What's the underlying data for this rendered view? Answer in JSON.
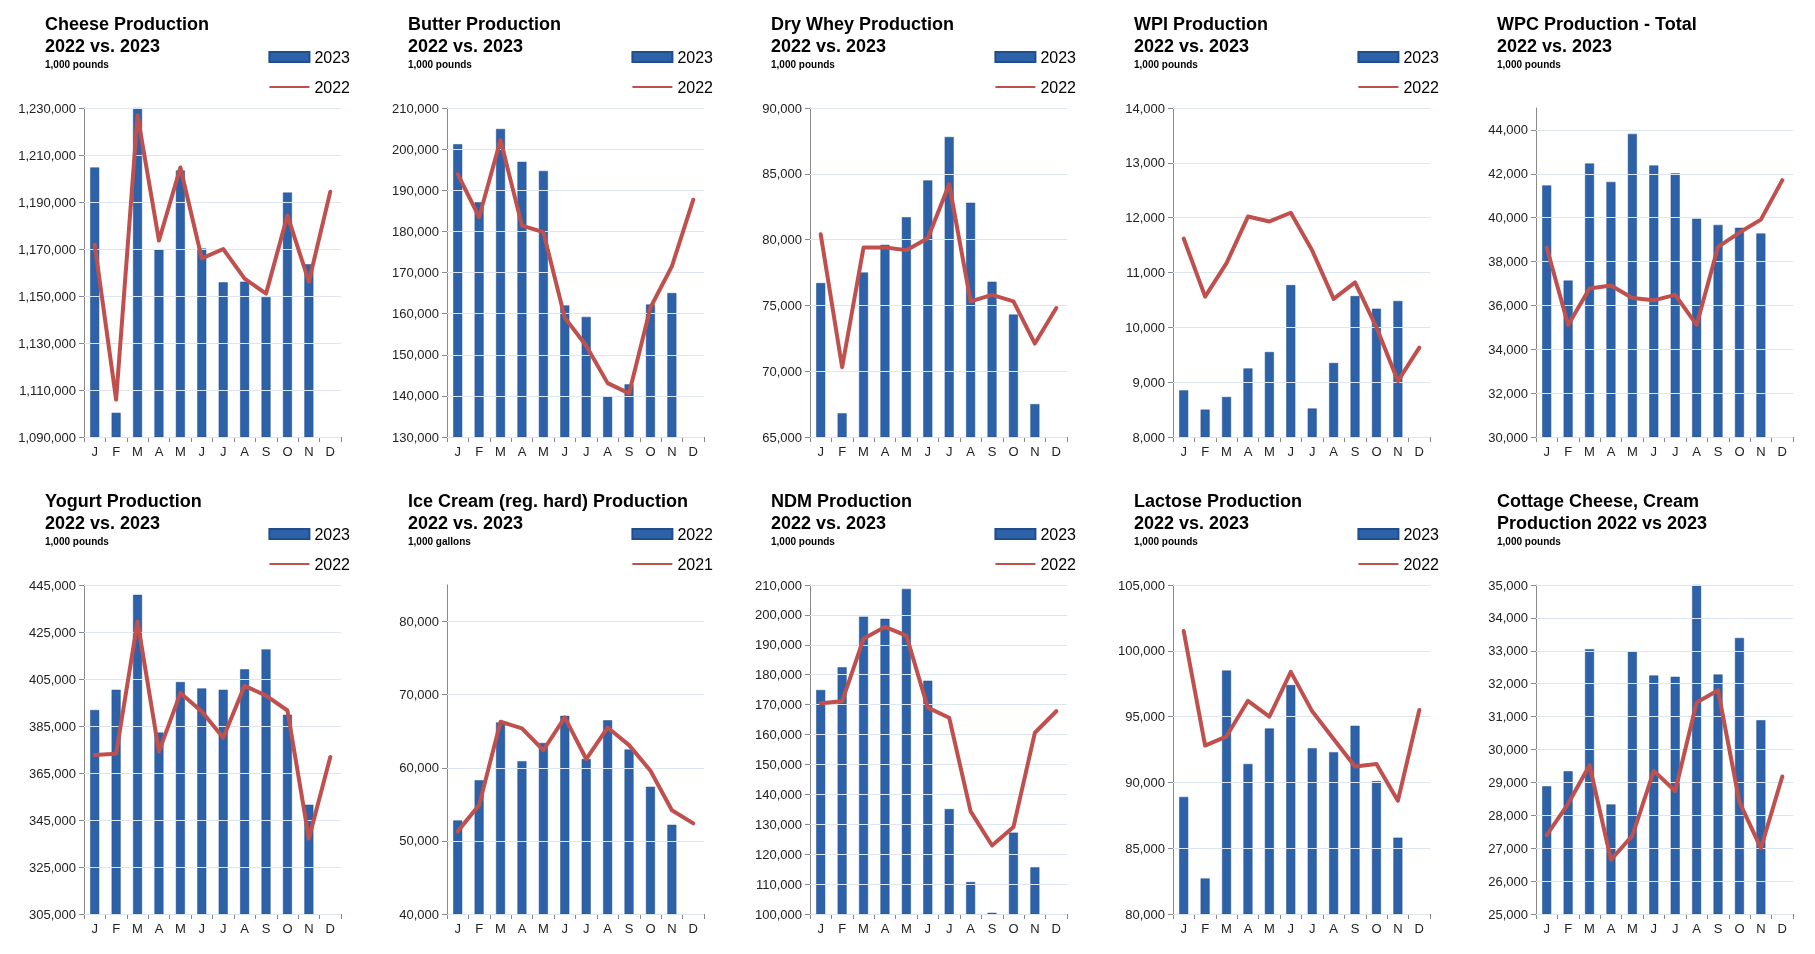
{
  "chart_data": [
    {
      "type": "bar",
      "title": "Cheese Production\n2022 vs. 2023",
      "subtitle": "1,000 pounds",
      "categories": [
        "J",
        "F",
        "M",
        "A",
        "M",
        "J",
        "J",
        "A",
        "S",
        "O",
        "N",
        "D"
      ],
      "series": [
        {
          "name": "2023",
          "color": "#2e62a8",
          "values": [
            1204700,
            1100300,
            1230000,
            1169700,
            1203400,
            1170200,
            1155800,
            1156100,
            1149600,
            1194000,
            1163500,
            null
          ]
        },
        {
          "name": "2022",
          "type": "line",
          "color": "#c0504d",
          "values": [
            1171800,
            1105900,
            1226900,
            1173600,
            1204700,
            1166000,
            1170000,
            1157400,
            1151000,
            1184300,
            1156100,
            1194400
          ]
        }
      ],
      "ylim": [
        1090000,
        1230000
      ],
      "yticks": [
        {
          "value": 1090000,
          "label": "1,090,000"
        },
        {
          "value": 1110000,
          "label": "1,110,000"
        },
        {
          "value": 1130000,
          "label": "1,130,000"
        },
        {
          "value": 1150000,
          "label": "1,150,000"
        },
        {
          "value": 1170000,
          "label": "1,170,000"
        },
        {
          "value": 1190000,
          "label": "1,190,000"
        },
        {
          "value": 1210000,
          "label": "1,210,000"
        },
        {
          "value": 1230000,
          "label": "1,230,000"
        }
      ],
      "grid": "y",
      "legend": "top right",
      "marker": "none"
    },
    {
      "type": "bar",
      "title": "Butter Production\n2022 vs. 2023",
      "subtitle": "1,000 pounds",
      "categories": [
        "J",
        "F",
        "M",
        "A",
        "M",
        "J",
        "J",
        "A",
        "S",
        "O",
        "N",
        "D"
      ],
      "series": [
        {
          "name": "2023",
          "color": "#2e62a8",
          "values": [
            201200,
            187100,
            204900,
            196900,
            194700,
            162000,
            159200,
            139800,
            142800,
            162200,
            165000,
            null
          ]
        },
        {
          "name": "2022",
          "type": "line",
          "color": "#c0504d",
          "values": [
            193900,
            183500,
            202200,
            181400,
            179800,
            159000,
            152200,
            143100,
            140600,
            161500,
            171500,
            187700
          ]
        }
      ],
      "ylim": [
        130000,
        210000
      ],
      "yticks": [
        {
          "value": 130000,
          "label": "130,000"
        },
        {
          "value": 140000,
          "label": "140,000"
        },
        {
          "value": 150000,
          "label": "150,000"
        },
        {
          "value": 160000,
          "label": "160,000"
        },
        {
          "value": 170000,
          "label": "170,000"
        },
        {
          "value": 180000,
          "label": "180,000"
        },
        {
          "value": 190000,
          "label": "190,000"
        },
        {
          "value": 200000,
          "label": "200,000"
        },
        {
          "value": 210000,
          "label": "210,000"
        }
      ],
      "grid": "y",
      "legend": "top right",
      "marker": "none"
    },
    {
      "type": "bar",
      "title": "Dry Whey Production\n2022 vs. 2023",
      "subtitle": "1,000 pounds",
      "categories": [
        "J",
        "F",
        "M",
        "A",
        "M",
        "J",
        "J",
        "A",
        "S",
        "O",
        "N",
        "D"
      ],
      "series": [
        {
          "name": "2023",
          "color": "#2e62a8",
          "values": [
            76700,
            66800,
            77500,
            79600,
            81700,
            84500,
            87800,
            82800,
            76800,
            74300,
            67500,
            null
          ]
        },
        {
          "name": "2022",
          "type": "line",
          "color": "#c0504d",
          "values": [
            80400,
            70300,
            79400,
            79400,
            79200,
            80100,
            84200,
            75300,
            75800,
            75300,
            72100,
            74800
          ]
        }
      ],
      "ylim": [
        65000,
        90000
      ],
      "yticks": [
        {
          "value": 65000,
          "label": "65,000"
        },
        {
          "value": 70000,
          "label": "70,000"
        },
        {
          "value": 75000,
          "label": "75,000"
        },
        {
          "value": 80000,
          "label": "80,000"
        },
        {
          "value": 85000,
          "label": "85,000"
        },
        {
          "value": 90000,
          "label": "90,000"
        }
      ],
      "grid": "y",
      "legend": "top right",
      "marker": "none"
    },
    {
      "type": "bar",
      "title": "WPI Production\n2022 vs. 2023",
      "subtitle": "1,000 pounds",
      "categories": [
        "J",
        "F",
        "M",
        "A",
        "M",
        "J",
        "J",
        "A",
        "S",
        "O",
        "N",
        "D"
      ],
      "series": [
        {
          "name": "2023",
          "color": "#2e62a8",
          "values": [
            8850,
            8500,
            8730,
            9250,
            9550,
            10770,
            8520,
            9350,
            10570,
            10340,
            10480,
            null
          ]
        },
        {
          "name": "2022",
          "type": "line",
          "color": "#c0504d",
          "values": [
            11620,
            10560,
            11170,
            12020,
            11930,
            12090,
            11400,
            10520,
            10820,
            10000,
            9020,
            9630
          ]
        }
      ],
      "ylim": [
        8000,
        14000
      ],
      "yticks": [
        {
          "value": 8000,
          "label": "8,000"
        },
        {
          "value": 9000,
          "label": "9,000"
        },
        {
          "value": 10000,
          "label": "10,000"
        },
        {
          "value": 11000,
          "label": "11,000"
        },
        {
          "value": 12000,
          "label": "12,000"
        },
        {
          "value": 13000,
          "label": "13,000"
        },
        {
          "value": 14000,
          "label": "14,000"
        }
      ],
      "grid": "y",
      "legend": "top right",
      "marker": "none"
    },
    {
      "type": "bar",
      "title": "WPC Production - Total\n2022 vs. 2023",
      "subtitle": "1,000 pounds",
      "categories": [
        "J",
        "F",
        "M",
        "A",
        "M",
        "J",
        "J",
        "A",
        "S",
        "O",
        "N",
        "D"
      ],
      "series": [
        {
          "color": "#2e62a8",
          "values": [
            41470,
            37130,
            42470,
            41630,
            43820,
            42380,
            42020,
            39950,
            39670,
            39540,
            39280,
            null
          ]
        },
        {
          "type": "line",
          "color": "#c0504d",
          "values": [
            38640,
            35110,
            36770,
            36910,
            36340,
            36230,
            36480,
            35110,
            38670,
            39320,
            39910,
            41710
          ]
        }
      ],
      "ylim": [
        30000,
        45000
      ],
      "yticks": [
        {
          "value": 30000,
          "label": "30,000"
        },
        {
          "value": 32000,
          "label": "32,000"
        },
        {
          "value": 34000,
          "label": "34,000"
        },
        {
          "value": 36000,
          "label": "36,000"
        },
        {
          "value": 38000,
          "label": "38,000"
        },
        {
          "value": 40000,
          "label": "40,000"
        },
        {
          "value": 42000,
          "label": "42,000"
        },
        {
          "value": 44000,
          "label": "44,000"
        }
      ],
      "grid": "y",
      "marker": "none"
    },
    {
      "type": "bar",
      "title": "Yogurt Production\n2022 vs. 2023",
      "subtitle": "1,000 pounds",
      "categories": [
        "J",
        "F",
        "M",
        "A",
        "M",
        "J",
        "J",
        "A",
        "S",
        "O",
        "N",
        "D"
      ],
      "series": [
        {
          "name": "2023",
          "color": "#2e62a8",
          "values": [
            391800,
            400400,
            440800,
            382200,
            403700,
            401000,
            400400,
            409100,
            417600,
            389800,
            351500,
            null
          ]
        },
        {
          "name": "2022",
          "type": "line",
          "color": "#c0504d",
          "values": [
            372700,
            373200,
            429500,
            374100,
            399000,
            391200,
            380000,
            402100,
            397900,
            391600,
            337100,
            371800
          ]
        }
      ],
      "ylim": [
        305000,
        445000
      ],
      "yticks": [
        {
          "value": 305000,
          "label": "305,000"
        },
        {
          "value": 325000,
          "label": "325,000"
        },
        {
          "value": 345000,
          "label": "345,000"
        },
        {
          "value": 365000,
          "label": "365,000"
        },
        {
          "value": 385000,
          "label": "385,000"
        },
        {
          "value": 405000,
          "label": "405,000"
        },
        {
          "value": 425000,
          "label": "425,000"
        },
        {
          "value": 445000,
          "label": "445,000"
        }
      ],
      "grid": "y",
      "legend": "top right",
      "marker": "none"
    },
    {
      "type": "bar",
      "title": "Ice Cream (reg. hard) Production\n2022 vs. 2023",
      "subtitle": "1,000 gallons",
      "categories": [
        "J",
        "F",
        "M",
        "A",
        "M",
        "J",
        "J",
        "A",
        "S",
        "O",
        "N",
        "D"
      ],
      "series": [
        {
          "name": "2022",
          "color": "#2e62a8",
          "values": [
            52800,
            58300,
            66200,
            60900,
            63400,
            67100,
            61200,
            66500,
            62500,
            57400,
            52200,
            null
          ]
        },
        {
          "name": "2021",
          "type": "line",
          "color": "#c0504d",
          "values": [
            51300,
            54900,
            66300,
            65400,
            62400,
            66900,
            61200,
            65500,
            63100,
            59600,
            54200,
            52400
          ]
        }
      ],
      "ylim": [
        40000,
        85000
      ],
      "yticks": [
        {
          "value": 40000,
          "label": "40,000"
        },
        {
          "value": 50000,
          "label": "50,000"
        },
        {
          "value": 60000,
          "label": "60,000"
        },
        {
          "value": 70000,
          "label": "70,000"
        },
        {
          "value": 80000,
          "label": "80,000"
        }
      ],
      "grid": "y",
      "legend": "top right",
      "marker": "none"
    },
    {
      "type": "bar",
      "title": "NDM Production\n2022 vs. 2023",
      "subtitle": "1,000 pounds",
      "categories": [
        "J",
        "F",
        "M",
        "A",
        "M",
        "J",
        "J",
        "A",
        "S",
        "O",
        "N",
        "D"
      ],
      "series": [
        {
          "name": "2023",
          "color": "#2e62a8",
          "values": [
            174900,
            182500,
            199400,
            198700,
            208700,
            178000,
            135100,
            110700,
            100400,
            127200,
            115600,
            null
          ]
        },
        {
          "name": "2022",
          "type": "line",
          "color": "#c0504d",
          "values": [
            170500,
            171100,
            192000,
            196000,
            193100,
            169000,
            165600,
            134300,
            122900,
            129100,
            160600,
            167800
          ]
        }
      ],
      "ylim": [
        100000,
        210000
      ],
      "yticks": [
        {
          "value": 100000,
          "label": "100,000"
        },
        {
          "value": 110000,
          "label": "110,000"
        },
        {
          "value": 120000,
          "label": "120,000"
        },
        {
          "value": 130000,
          "label": "130,000"
        },
        {
          "value": 140000,
          "label": "140,000"
        },
        {
          "value": 150000,
          "label": "150,000"
        },
        {
          "value": 160000,
          "label": "160,000"
        },
        {
          "value": 170000,
          "label": "170,000"
        },
        {
          "value": 180000,
          "label": "180,000"
        },
        {
          "value": 190000,
          "label": "190,000"
        },
        {
          "value": 200000,
          "label": "200,000"
        },
        {
          "value": 210000,
          "label": "210,000"
        }
      ],
      "grid": "y",
      "legend": "top right",
      "marker": "none"
    },
    {
      "type": "bar",
      "title": "Lactose Production\n2022 vs. 2023",
      "subtitle": "1,000 pounds",
      "categories": [
        "J",
        "F",
        "M",
        "A",
        "M",
        "J",
        "J",
        "A",
        "S",
        "O",
        "N",
        "D"
      ],
      "series": [
        {
          "name": "2023",
          "color": "#2e62a8",
          "values": [
            88900,
            82700,
            98500,
            91400,
            94100,
            97400,
            92600,
            92300,
            94300,
            90100,
            85800,
            null
          ]
        },
        {
          "name": "2022",
          "type": "line",
          "color": "#c0504d",
          "values": [
            101500,
            92800,
            93500,
            96200,
            95000,
            98400,
            95400,
            93300,
            91200,
            91400,
            88600,
            95500
          ]
        }
      ],
      "ylim": [
        80000,
        105000
      ],
      "yticks": [
        {
          "value": 80000,
          "label": "80,000"
        },
        {
          "value": 85000,
          "label": "85,000"
        },
        {
          "value": 90000,
          "label": "90,000"
        },
        {
          "value": 95000,
          "label": "95,000"
        },
        {
          "value": 100000,
          "label": "100,000"
        },
        {
          "value": 105000,
          "label": "105,000"
        }
      ],
      "grid": "y",
      "legend": "top right",
      "marker": "none"
    },
    {
      "type": "bar",
      "title": "Cottage Cheese, Cream\nProduction 2022 vs 2023",
      "subtitle": "1,000 pounds",
      "categories": [
        "J",
        "F",
        "M",
        "A",
        "M",
        "J",
        "J",
        "A",
        "S",
        "O",
        "N",
        "D"
      ],
      "series": [
        {
          "color": "#2e62a8",
          "values": [
            28880,
            29340,
            33050,
            28330,
            32980,
            32250,
            32210,
            35000,
            32280,
            33390,
            30890,
            null
          ]
        },
        {
          "type": "line",
          "color": "#c0504d",
          "values": [
            27400,
            28350,
            29520,
            26650,
            27380,
            29350,
            28740,
            31430,
            31800,
            28400,
            27000,
            29180
          ]
        }
      ],
      "ylim": [
        25000,
        35000
      ],
      "yticks": [
        {
          "value": 25000,
          "label": "25,000"
        },
        {
          "value": 26000,
          "label": "26,000"
        },
        {
          "value": 27000,
          "label": "27,000"
        },
        {
          "value": 28000,
          "label": "28,000"
        },
        {
          "value": 29000,
          "label": "29,000"
        },
        {
          "value": 30000,
          "label": "30,000"
        },
        {
          "value": 31000,
          "label": "31,000"
        },
        {
          "value": 32000,
          "label": "32,000"
        },
        {
          "value": 33000,
          "label": "33,000"
        },
        {
          "value": 34000,
          "label": "34,000"
        },
        {
          "value": 35000,
          "label": "35,000"
        }
      ],
      "grid": "y",
      "marker": "none"
    }
  ]
}
